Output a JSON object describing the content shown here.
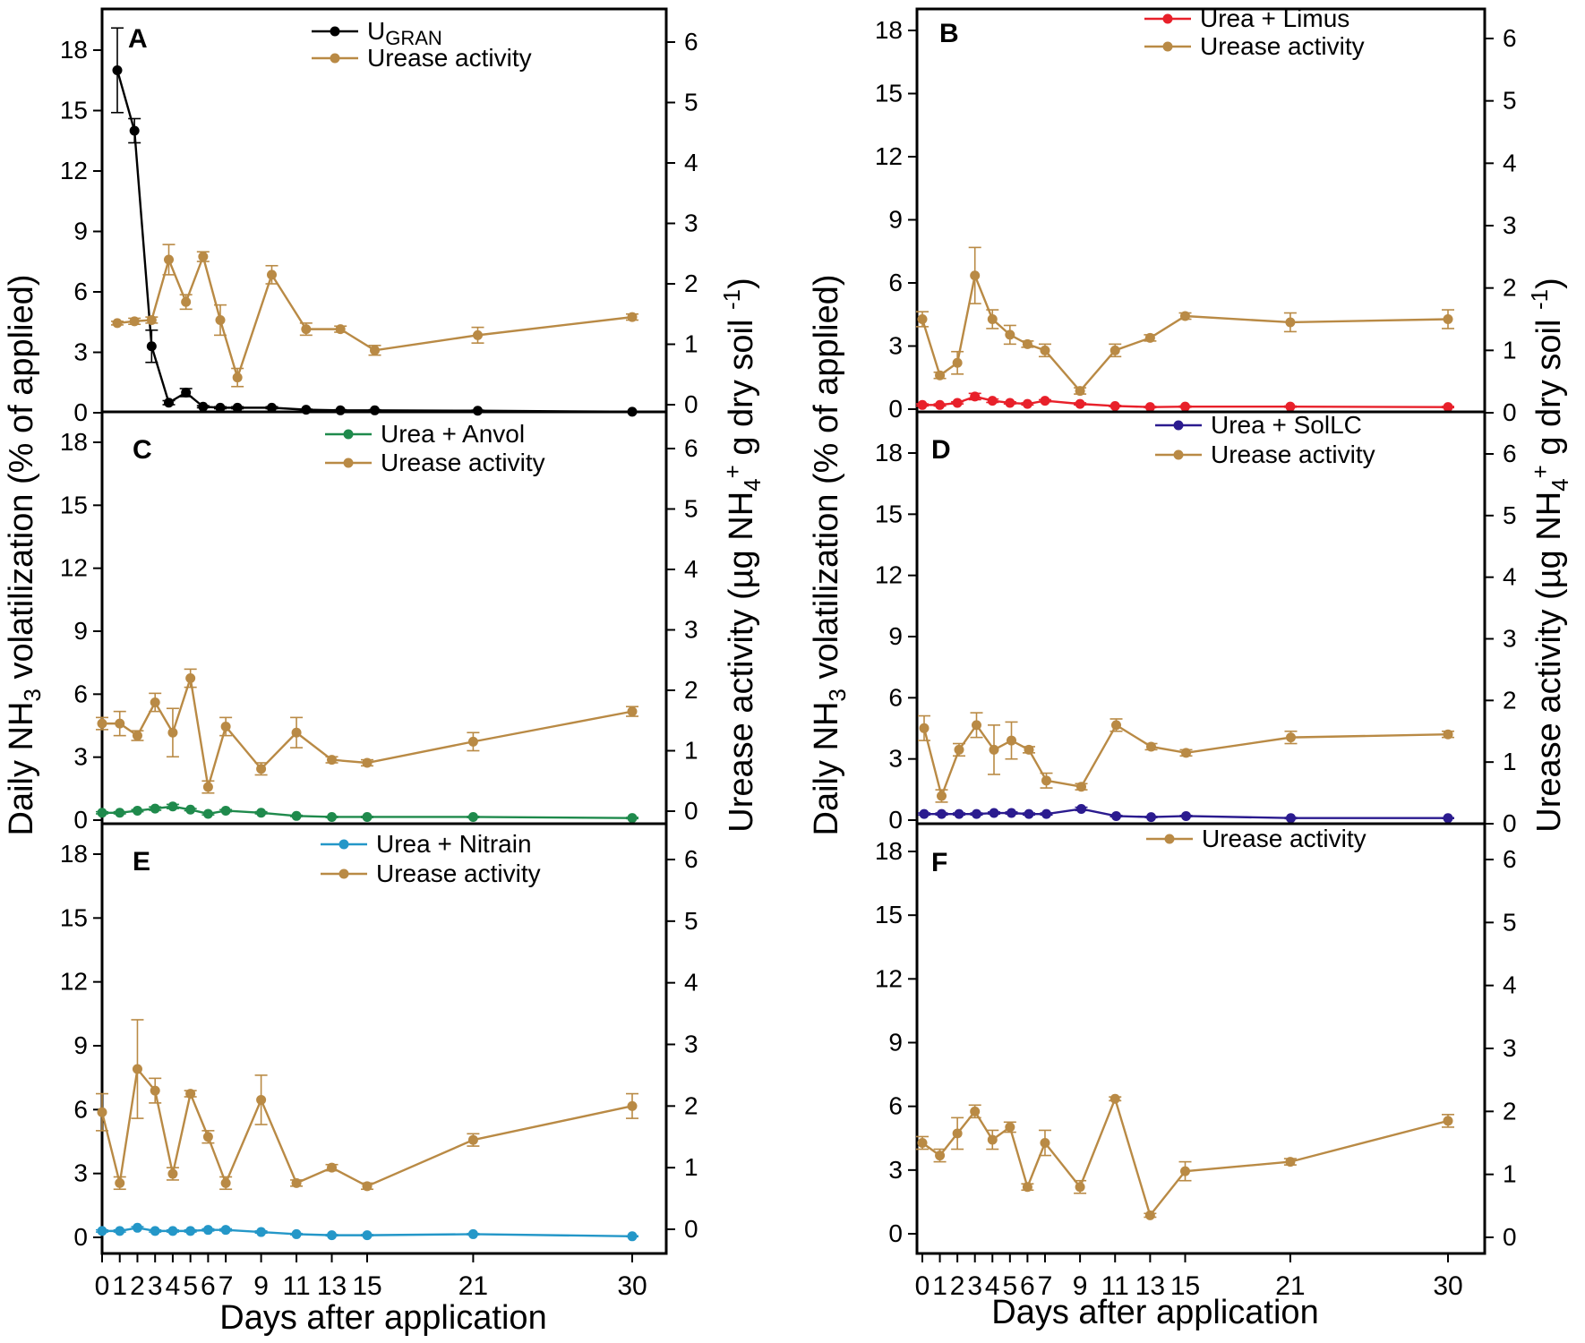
{
  "figure": {
    "left_axis_label": "Daily NH",
    "left_axis_sub": "3",
    "left_axis_label_rest": " volatilization  (% of applied)",
    "right_axis_label": "Urease activity (µg NH",
    "right_axis_sub": "4",
    "right_axis_sup": "+",
    "right_axis_label_rest": " g dry soil ",
    "right_axis_sup2": "-1",
    "right_axis_label_close": ")",
    "x_axis_label": "Days after application",
    "x_tick_labels": [
      "0",
      "1",
      "2",
      "3",
      "4",
      "5",
      "6",
      "7",
      "9",
      "11",
      "13",
      "15",
      "21",
      "30"
    ],
    "left_ticks": [
      0,
      3,
      6,
      9,
      12,
      15,
      18
    ],
    "right_ticks": [
      0,
      1,
      2,
      3,
      4,
      5,
      6
    ],
    "colors": {
      "urease": "#B98A45",
      "ugran": "#000000",
      "limus": "#E8202A",
      "anvol": "#1F8A4C",
      "solic": "#2B1B8F",
      "nitrain": "#2497C8"
    }
  },
  "chart_data": [
    {
      "panel": "A",
      "type": "line",
      "x": [
        0,
        1,
        2,
        3,
        4,
        5,
        6,
        7,
        9,
        11,
        13,
        15,
        21,
        30
      ],
      "ylim_left": [
        0,
        19
      ],
      "ylim_right": [
        0,
        6.333
      ],
      "series": [
        {
          "name": "U",
          "name_sub": "GRAN",
          "axis": "left",
          "color_key": "ugran",
          "values": [
            17.0,
            14.0,
            3.3,
            0.5,
            1.0,
            0.3,
            0.25,
            0.25,
            0.25,
            0.15,
            0.12,
            0.12,
            0.1,
            0.05
          ],
          "errors": [
            2.1,
            0.6,
            0.8,
            0.1,
            0.2,
            0.05,
            0.05,
            0.05,
            0.05,
            0.03,
            0.03,
            0.03,
            0.03,
            0.02
          ]
        },
        {
          "name": "Urease activity",
          "axis": "right",
          "color_key": "urease",
          "values": [
            1.35,
            1.38,
            1.4,
            2.4,
            1.7,
            2.45,
            1.4,
            0.45,
            2.15,
            1.25,
            1.25,
            0.9,
            1.15,
            1.45
          ],
          "errors": [
            0.03,
            0.05,
            0.05,
            0.25,
            0.12,
            0.08,
            0.25,
            0.15,
            0.15,
            0.1,
            0.05,
            0.08,
            0.13,
            0.05
          ]
        }
      ]
    },
    {
      "panel": "B",
      "type": "line",
      "x": [
        0,
        1,
        2,
        3,
        4,
        5,
        6,
        7,
        9,
        11,
        13,
        15,
        21,
        30
      ],
      "ylim_left": [
        0,
        19
      ],
      "ylim_right": [
        0,
        6.333
      ],
      "series": [
        {
          "name": "Urea + Limus",
          "axis": "left",
          "color_key": "limus",
          "values": [
            0.2,
            0.2,
            0.3,
            0.6,
            0.4,
            0.3,
            0.25,
            0.4,
            0.25,
            0.15,
            0.1,
            0.12,
            0.12,
            0.1
          ],
          "errors": [
            0.05,
            0.05,
            0.05,
            0.15,
            0.08,
            0.05,
            0.05,
            0.05,
            0.05,
            0.03,
            0.03,
            0.03,
            0.03,
            0.03
          ]
        },
        {
          "name": "Urease activity",
          "axis": "right",
          "color_key": "urease",
          "values": [
            1.5,
            0.6,
            0.8,
            2.2,
            1.5,
            1.25,
            1.1,
            1.0,
            0.35,
            1.0,
            1.2,
            1.55,
            1.45,
            1.5
          ],
          "errors": [
            0.12,
            0.05,
            0.18,
            0.45,
            0.15,
            0.15,
            0.05,
            0.1,
            0.05,
            0.1,
            0.05,
            0.05,
            0.15,
            0.15
          ]
        }
      ]
    },
    {
      "panel": "C",
      "type": "line",
      "x": [
        0,
        1,
        2,
        3,
        4,
        5,
        6,
        7,
        9,
        11,
        13,
        15,
        21,
        30
      ],
      "ylim_left": [
        0,
        19
      ],
      "ylim_right": [
        0,
        6.333
      ],
      "series": [
        {
          "name": "Urea + Anvol",
          "axis": "left",
          "color_key": "anvol",
          "values": [
            0.35,
            0.35,
            0.45,
            0.55,
            0.65,
            0.5,
            0.3,
            0.45,
            0.35,
            0.2,
            0.15,
            0.15,
            0.15,
            0.1
          ],
          "errors": [
            0.05,
            0.05,
            0.05,
            0.08,
            0.1,
            0.05,
            0.05,
            0.05,
            0.05,
            0.03,
            0.03,
            0.03,
            0.03,
            0.03
          ]
        },
        {
          "name": "Urease activity",
          "axis": "right",
          "color_key": "urease",
          "values": [
            1.45,
            1.45,
            1.25,
            1.8,
            1.3,
            2.2,
            0.4,
            1.4,
            0.7,
            1.3,
            0.85,
            0.8,
            1.15,
            1.65
          ],
          "errors": [
            0.1,
            0.2,
            0.08,
            0.15,
            0.4,
            0.15,
            0.1,
            0.15,
            0.1,
            0.25,
            0.05,
            0.05,
            0.15,
            0.08
          ]
        }
      ]
    },
    {
      "panel": "D",
      "type": "line",
      "x": [
        0,
        1,
        2,
        3,
        4,
        5,
        6,
        7,
        9,
        11,
        13,
        15,
        21,
        30
      ],
      "ylim_left": [
        0,
        19
      ],
      "ylim_right": [
        0,
        6.333
      ],
      "series": [
        {
          "name": "Urea + SolLC",
          "axis": "left",
          "color_key": "solic",
          "values": [
            0.3,
            0.3,
            0.3,
            0.3,
            0.35,
            0.35,
            0.3,
            0.3,
            0.55,
            0.2,
            0.15,
            0.2,
            0.1,
            0.1
          ],
          "errors": [
            0.05,
            0.05,
            0.05,
            0.05,
            0.05,
            0.05,
            0.05,
            0.05,
            0.08,
            0.03,
            0.03,
            0.03,
            0.03,
            0.02
          ]
        },
        {
          "name": "Urease activity",
          "axis": "right",
          "color_key": "urease",
          "values": [
            1.55,
            0.45,
            1.2,
            1.6,
            1.2,
            1.35,
            1.2,
            0.7,
            0.6,
            1.6,
            1.25,
            1.15,
            1.4,
            1.45
          ],
          "errors": [
            0.2,
            0.1,
            0.1,
            0.2,
            0.4,
            0.3,
            0.05,
            0.12,
            0.05,
            0.1,
            0.05,
            0.05,
            0.1,
            0.05
          ]
        }
      ]
    },
    {
      "panel": "E",
      "type": "line",
      "x": [
        0,
        1,
        2,
        3,
        4,
        5,
        6,
        7,
        9,
        11,
        13,
        15,
        21,
        30
      ],
      "ylim_left": [
        0,
        19
      ],
      "ylim_right": [
        0,
        6.333
      ],
      "series": [
        {
          "name": "Urea + Nitrain",
          "axis": "left",
          "color_key": "nitrain",
          "values": [
            0.3,
            0.3,
            0.45,
            0.3,
            0.3,
            0.3,
            0.35,
            0.35,
            0.25,
            0.15,
            0.1,
            0.1,
            0.15,
            0.05
          ],
          "errors": [
            0.05,
            0.05,
            0.05,
            0.05,
            0.05,
            0.05,
            0.05,
            0.05,
            0.05,
            0.03,
            0.03,
            0.03,
            0.03,
            0.02
          ]
        },
        {
          "name": "Urease activity",
          "axis": "right",
          "color_key": "urease",
          "values": [
            1.9,
            0.75,
            2.6,
            2.25,
            0.9,
            2.2,
            1.5,
            0.75,
            2.1,
            0.75,
            1.0,
            0.7,
            1.45,
            2.0
          ],
          "errors": [
            0.3,
            0.1,
            0.8,
            0.2,
            0.1,
            0.05,
            0.1,
            0.1,
            0.4,
            0.05,
            0.05,
            0.05,
            0.1,
            0.2
          ]
        }
      ]
    },
    {
      "panel": "F",
      "type": "line",
      "x": [
        0,
        1,
        2,
        3,
        4,
        5,
        6,
        7,
        9,
        11,
        13,
        15,
        21,
        30
      ],
      "ylim_left": [
        0,
        19
      ],
      "ylim_right": [
        0,
        6.333
      ],
      "series": [
        {
          "name": "Urease activity",
          "axis": "right",
          "color_key": "urease",
          "values": [
            1.5,
            1.3,
            1.65,
            2.0,
            1.55,
            1.75,
            0.8,
            1.5,
            0.8,
            2.2,
            0.35,
            1.05,
            1.2,
            1.85
          ],
          "errors": [
            0.1,
            0.1,
            0.25,
            0.1,
            0.15,
            0.08,
            0.05,
            0.2,
            0.1,
            0.03,
            0.03,
            0.15,
            0.05,
            0.1
          ]
        }
      ]
    }
  ]
}
